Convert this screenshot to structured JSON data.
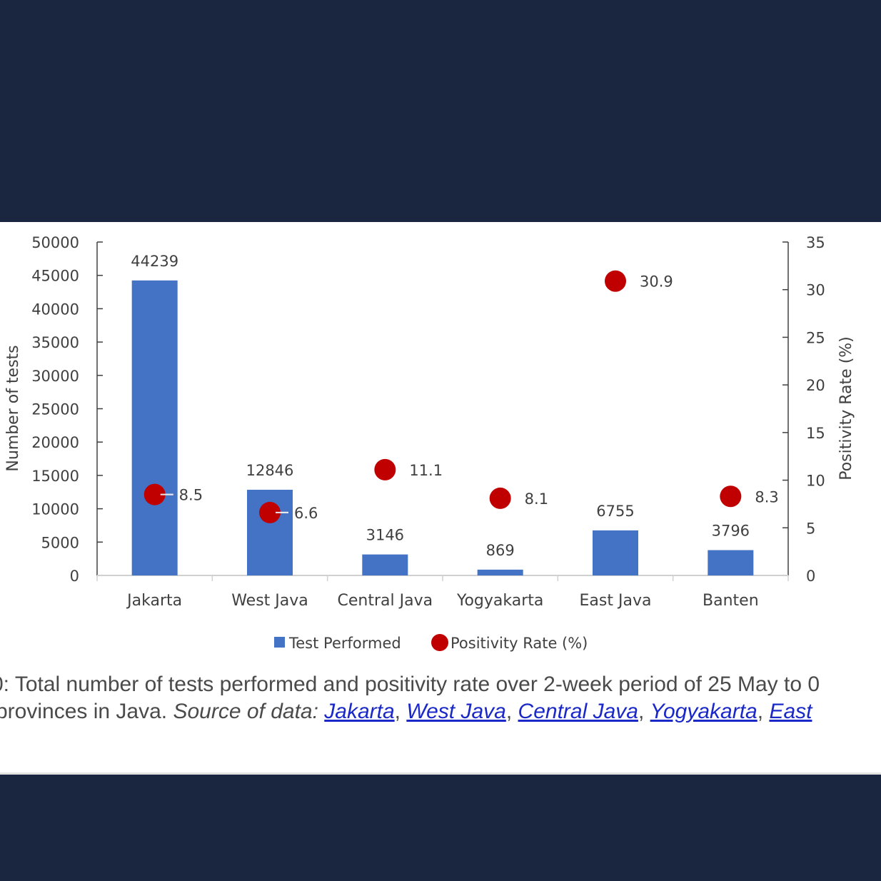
{
  "chart_data": {
    "type": "bar",
    "categories": [
      "Jakarta",
      "West Java",
      "Central Java",
      "Yogyakarta",
      "East Java",
      "Banten"
    ],
    "series": [
      {
        "name": "Test Performed",
        "type": "bar",
        "axis": "left",
        "color": "#4472c4",
        "values": [
          44239,
          12846,
          3146,
          869,
          6755,
          3796
        ],
        "labels": [
          "44239",
          "12846",
          "3146",
          "869",
          "6755",
          "3796"
        ]
      },
      {
        "name": "Positivity Rate (%)",
        "type": "scatter",
        "axis": "right",
        "color": "#c00000",
        "values": [
          8.5,
          6.6,
          11.1,
          8.1,
          30.9,
          8.3
        ],
        "labels": [
          "8.5",
          "6.6",
          "11.1",
          "8.1",
          "30.9",
          "8.3"
        ]
      }
    ],
    "ylabel": "Number of tests",
    "y2label": "Positivity Rate (%)",
    "ylim": [
      0,
      50000
    ],
    "y2lim": [
      0,
      35
    ],
    "yticks": [
      "0",
      "5000",
      "10000",
      "15000",
      "20000",
      "25000",
      "30000",
      "35000",
      "40000",
      "45000",
      "50000"
    ],
    "y2ticks": [
      "0",
      "5",
      "10",
      "15",
      "20",
      "25",
      "30",
      "35"
    ],
    "legend_position": "bottom",
    "grid": false
  },
  "caption": {
    "line1": "0: Total number of tests performed and positivity rate over 2-week period of 25 May to 0",
    "line2_prefix": "provinces in Java. ",
    "source_label": "Source of data:",
    "sources": [
      "Jakarta",
      "West Java",
      "Central Java",
      "Yogyakarta",
      "East"
    ],
    "separator": ","
  }
}
